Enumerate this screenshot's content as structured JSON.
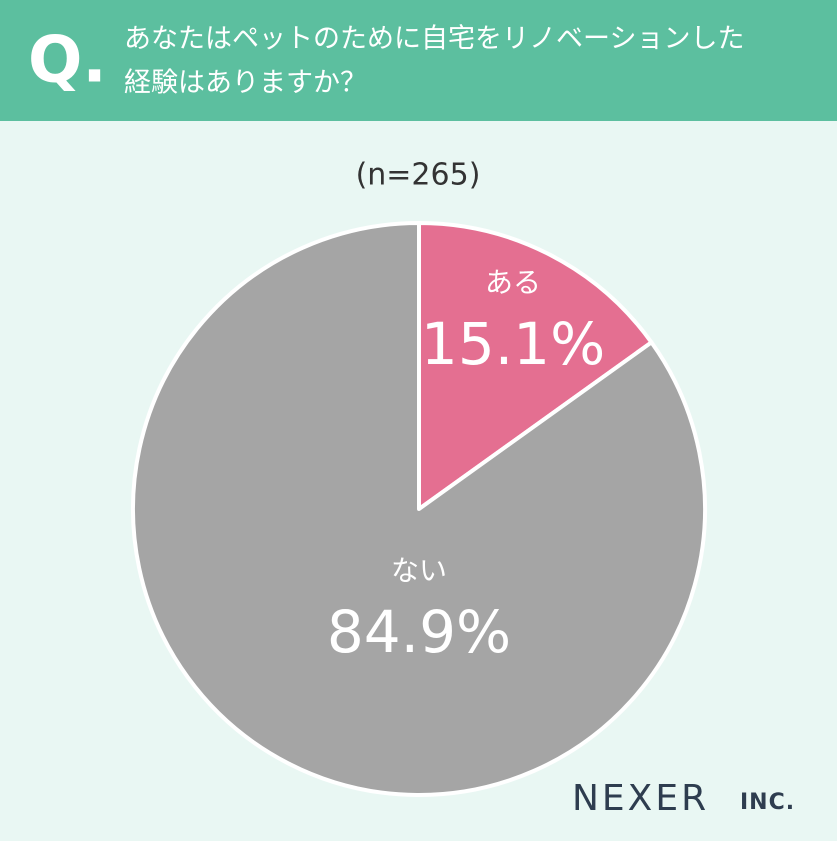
{
  "marker": "Q.",
  "brand": "NEXER",
  "brand_suffix": "INC.",
  "chart_data": {
    "type": "pie",
    "title": [
      "あなたはペットのために自宅をリノベーションした",
      "経験はありますか？"
    ],
    "subtitle": "(n=265)",
    "categories": [
      "ある",
      "ない"
    ],
    "values": [
      15.1,
      84.9
    ],
    "value_labels": [
      "15.1%",
      "84.9%"
    ],
    "colors": [
      "#e46f91",
      "#a5a5a5"
    ]
  }
}
